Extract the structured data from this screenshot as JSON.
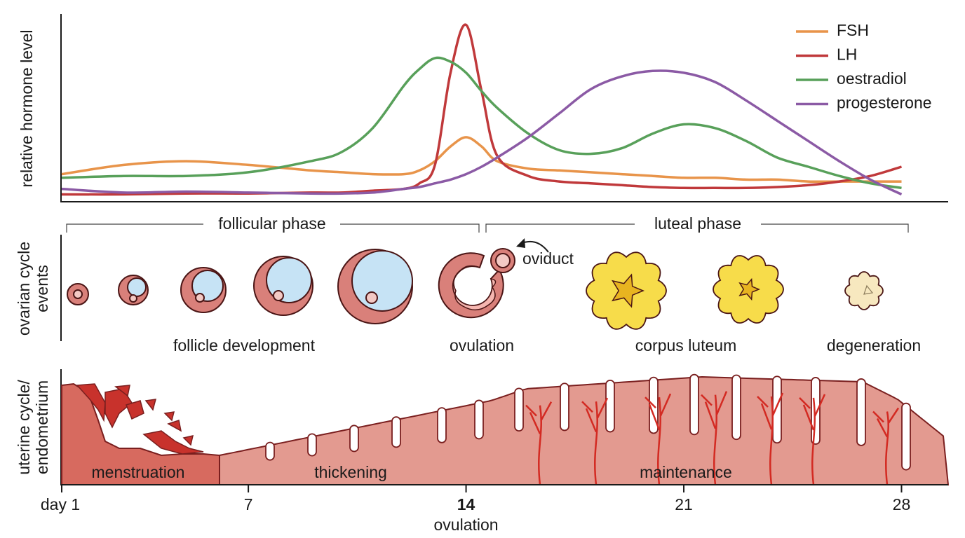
{
  "chart_data": {
    "type": "line",
    "ylabel": "relative hormone level",
    "x": [
      1,
      3,
      5,
      7,
      9,
      10,
      11,
      12,
      12.5,
      13,
      13.5,
      14,
      14.5,
      15,
      16,
      17,
      18,
      19,
      20,
      21,
      22,
      23,
      24,
      25,
      26,
      27,
      28
    ],
    "xlim": [
      1,
      29.5
    ],
    "xticks": [
      {
        "value": 1,
        "label": "day 1"
      },
      7,
      14,
      21,
      28
    ],
    "x_note": "ovulation",
    "ylim": [
      0,
      1
    ],
    "legend": "top-right",
    "series": [
      {
        "name": "FSH",
        "color": "#e8944a",
        "values": [
          0.15,
          0.2,
          0.22,
          0.2,
          0.17,
          0.16,
          0.15,
          0.15,
          0.17,
          0.22,
          0.3,
          0.35,
          0.3,
          0.22,
          0.18,
          0.17,
          0.16,
          0.15,
          0.14,
          0.13,
          0.13,
          0.12,
          0.12,
          0.11,
          0.11,
          0.11,
          0.11
        ]
      },
      {
        "name": "LH",
        "color": "#c0393b",
        "values": [
          0.04,
          0.04,
          0.045,
          0.045,
          0.05,
          0.05,
          0.06,
          0.07,
          0.1,
          0.2,
          0.7,
          0.96,
          0.6,
          0.25,
          0.14,
          0.11,
          0.1,
          0.09,
          0.08,
          0.075,
          0.075,
          0.075,
          0.08,
          0.09,
          0.11,
          0.14,
          0.19
        ]
      },
      {
        "name": "oestradiol",
        "color": "#58a05a",
        "values": [
          0.13,
          0.14,
          0.14,
          0.16,
          0.22,
          0.27,
          0.4,
          0.63,
          0.72,
          0.78,
          0.76,
          0.7,
          0.6,
          0.51,
          0.37,
          0.28,
          0.26,
          0.29,
          0.37,
          0.42,
          0.4,
          0.33,
          0.24,
          0.19,
          0.14,
          0.1,
          0.075
        ]
      },
      {
        "name": "progesterone",
        "color": "#8b5aa5",
        "values": [
          0.07,
          0.05,
          0.055,
          0.05,
          0.045,
          0.045,
          0.05,
          0.07,
          0.08,
          0.1,
          0.12,
          0.15,
          0.19,
          0.24,
          0.35,
          0.48,
          0.61,
          0.68,
          0.71,
          0.7,
          0.65,
          0.55,
          0.44,
          0.33,
          0.22,
          0.12,
          0.04
        ]
      }
    ]
  },
  "ovarian_panel": {
    "ylabel": [
      "ovarian cycle",
      "events"
    ],
    "phases": [
      "follicular phase",
      "luteal phase"
    ],
    "oviduct": "oviduct",
    "stages": [
      "follicle development",
      "ovulation",
      "corpus luteum",
      "degeneration"
    ]
  },
  "uterine_panel": {
    "ylabel": [
      "uterine cycle/",
      "endometrium"
    ],
    "stages": [
      "menstruation",
      "thickening",
      "maintenance"
    ]
  }
}
